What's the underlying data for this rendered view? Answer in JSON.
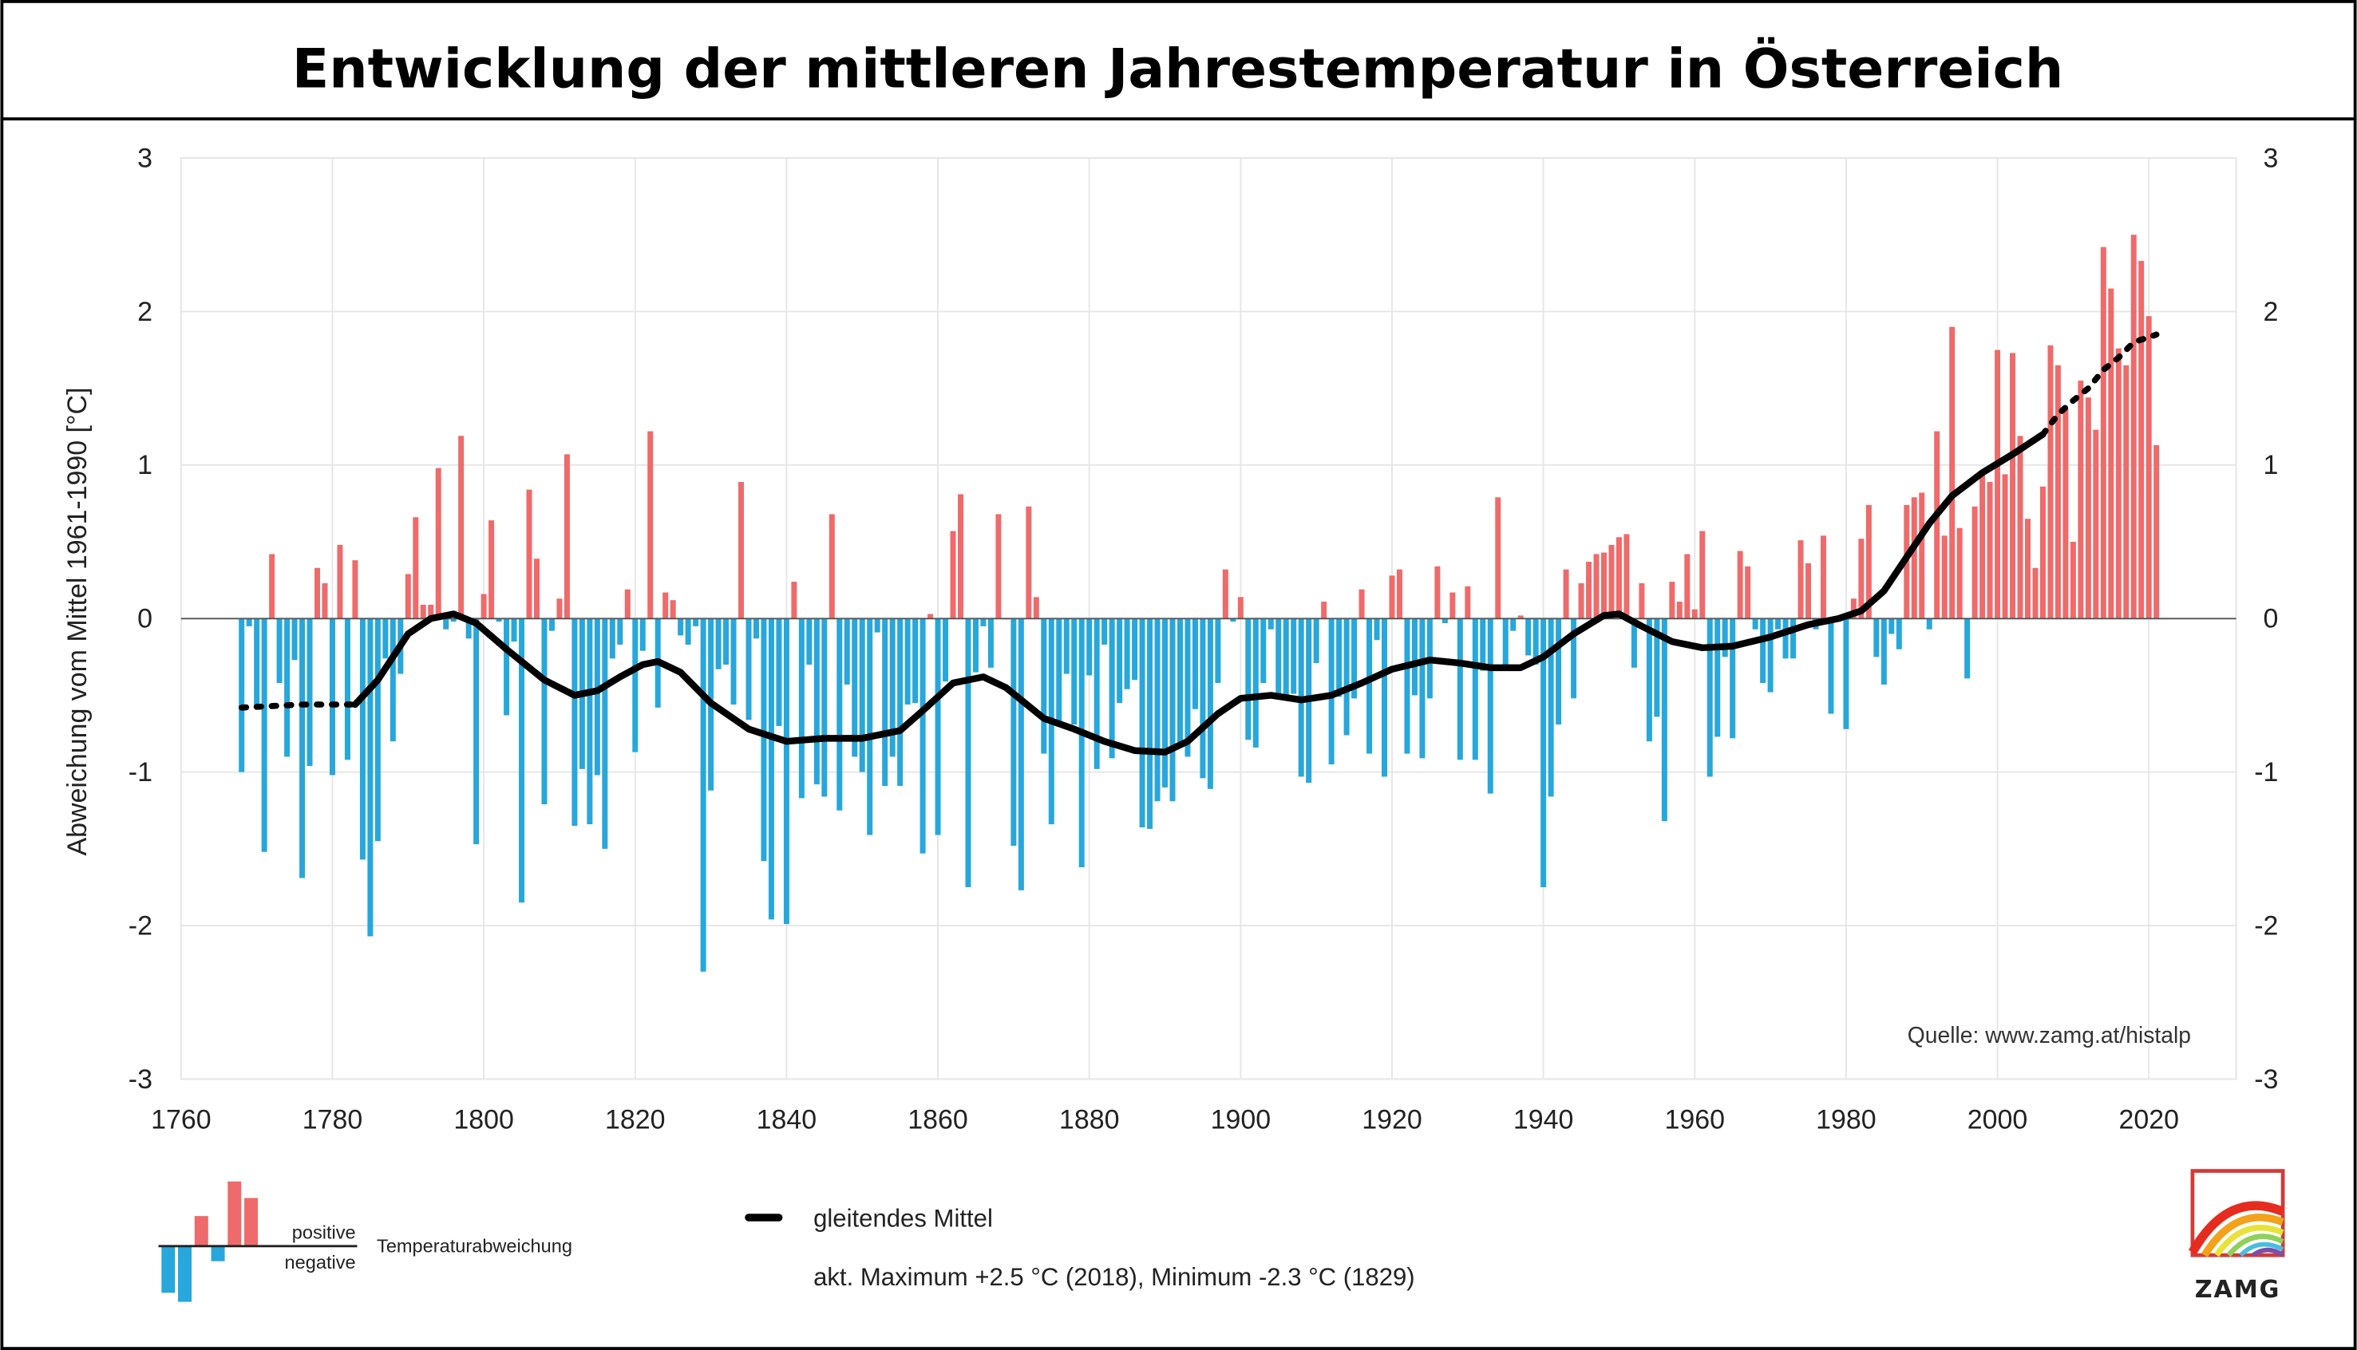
{
  "title": "Entwicklung der mittleren Jahrestemperatur in Österreich",
  "source": "Quelle: www.zamg.at/histalp",
  "legend": {
    "positive": "positive",
    "negative": "negative",
    "deviation": "Temperaturabweichung",
    "smoothed": "gleitendes Mittel",
    "extremes": "akt. Maximum +2.5 °C (2018), Minimum -2.3 °C (1829)"
  },
  "logo": {
    "text": "ZAMG"
  },
  "colors": {
    "positive": "#ef6a6a",
    "negative": "#27a7db",
    "smoothed": "#000000",
    "grid": "#e6e6e6"
  },
  "chart_data": {
    "type": "bar",
    "title": "Entwicklung der mittleren Jahrestemperatur in Österreich",
    "xlabel": "",
    "ylabel": "Abweichung vom Mittel 1961-1990 [°C]",
    "xlim": [
      1760,
      2025
    ],
    "ylim": [
      -3,
      3
    ],
    "xticks": [
      "1760",
      "1780",
      "1800",
      "1820",
      "1840",
      "1860",
      "1880",
      "1900",
      "1920",
      "1940",
      "1960",
      "1980",
      "2000",
      "2020"
    ],
    "yticks": [
      "3",
      "2",
      "1",
      "0",
      "-1",
      "-2",
      "-3"
    ],
    "grid": true,
    "legend_position": "bottom",
    "years": [
      1768,
      1769,
      1770,
      1771,
      1772,
      1773,
      1774,
      1775,
      1776,
      1777,
      1778,
      1779,
      1780,
      1781,
      1782,
      1783,
      1784,
      1785,
      1786,
      1787,
      1788,
      1789,
      1790,
      1791,
      1792,
      1793,
      1794,
      1795,
      1796,
      1797,
      1798,
      1799,
      1800,
      1801,
      1802,
      1803,
      1804,
      1805,
      1806,
      1807,
      1808,
      1809,
      1810,
      1811,
      1812,
      1813,
      1814,
      1815,
      1816,
      1817,
      1818,
      1819,
      1820,
      1821,
      1822,
      1823,
      1824,
      1825,
      1826,
      1827,
      1828,
      1829,
      1830,
      1831,
      1832,
      1833,
      1834,
      1835,
      1836,
      1837,
      1838,
      1839,
      1840,
      1841,
      1842,
      1843,
      1844,
      1845,
      1846,
      1847,
      1848,
      1849,
      1850,
      1851,
      1852,
      1853,
      1854,
      1855,
      1856,
      1857,
      1858,
      1859,
      1860,
      1861,
      1862,
      1863,
      1864,
      1865,
      1866,
      1867,
      1868,
      1869,
      1870,
      1871,
      1872,
      1873,
      1874,
      1875,
      1876,
      1877,
      1878,
      1879,
      1880,
      1881,
      1882,
      1883,
      1884,
      1885,
      1886,
      1887,
      1888,
      1889,
      1890,
      1891,
      1892,
      1893,
      1894,
      1895,
      1896,
      1897,
      1898,
      1899,
      1900,
      1901,
      1902,
      1903,
      1904,
      1905,
      1906,
      1907,
      1908,
      1909,
      1910,
      1911,
      1912,
      1913,
      1914,
      1915,
      1916,
      1917,
      1918,
      1919,
      1920,
      1921,
      1922,
      1923,
      1924,
      1925,
      1926,
      1927,
      1928,
      1929,
      1930,
      1931,
      1932,
      1933,
      1934,
      1935,
      1936,
      1937,
      1938,
      1939,
      1940,
      1941,
      1942,
      1943,
      1944,
      1945,
      1946,
      1947,
      1948,
      1949,
      1950,
      1951,
      1952,
      1953,
      1954,
      1955,
      1956,
      1957,
      1958,
      1959,
      1960,
      1961,
      1962,
      1963,
      1964,
      1965,
      1966,
      1967,
      1968,
      1969,
      1970,
      1971,
      1972,
      1973,
      1974,
      1975,
      1976,
      1977,
      1978,
      1979,
      1980,
      1981,
      1982,
      1983,
      1984,
      1985,
      1986,
      1987,
      1988,
      1989,
      1990,
      1991,
      1992,
      1993,
      1994,
      1995,
      1996,
      1997,
      1998,
      1999,
      2000,
      2001,
      2002,
      2003,
      2004,
      2005,
      2006,
      2007,
      2008,
      2009,
      2010,
      2011,
      2012,
      2013,
      2014,
      2015,
      2016,
      2017,
      2018,
      2019,
      2020,
      2021
    ],
    "values": [
      -1.0,
      -0.05,
      -0.58,
      -1.52,
      0.42,
      -0.42,
      -0.9,
      -0.27,
      -1.69,
      -0.96,
      0.33,
      0.23,
      -1.02,
      0.48,
      -0.92,
      0.38,
      -1.57,
      -2.07,
      -1.45,
      -0.26,
      -0.8,
      -0.36,
      0.29,
      0.66,
      0.09,
      0.09,
      0.98,
      -0.07,
      -0.02,
      1.19,
      -0.13,
      -1.47,
      0.16,
      0.64,
      -0.02,
      -0.63,
      -0.15,
      -1.85,
      0.84,
      0.39,
      -1.21,
      -0.08,
      0.13,
      1.07,
      -1.35,
      -0.98,
      -1.34,
      -1.02,
      -1.5,
      -0.26,
      -0.17,
      0.19,
      -0.87,
      -0.21,
      1.22,
      -0.58,
      0.17,
      0.12,
      -0.11,
      -0.17,
      -0.05,
      -2.3,
      -1.12,
      -0.33,
      -0.3,
      -0.56,
      0.89,
      -0.66,
      -0.13,
      -1.58,
      -1.96,
      -0.7,
      -1.99,
      0.24,
      -1.17,
      -0.3,
      -1.08,
      -1.16,
      0.68,
      -1.25,
      -0.43,
      -0.9,
      -1.0,
      -1.41,
      -0.09,
      -1.09,
      -0.9,
      -1.09,
      -0.56,
      -0.55,
      -1.53,
      0.03,
      -1.41,
      -0.41,
      0.57,
      0.81,
      -1.75,
      -0.35,
      -0.05,
      -0.32,
      0.68,
      0.0,
      -1.48,
      -1.77,
      0.73,
      0.14,
      -0.88,
      -1.34,
      -0.69,
      -0.36,
      -0.69,
      -1.62,
      -0.37,
      -0.98,
      -0.17,
      -0.91,
      -0.55,
      -0.46,
      -0.4,
      -1.36,
      -1.37,
      -1.19,
      -1.1,
      -1.19,
      -0.84,
      -0.9,
      -0.59,
      -1.04,
      -1.11,
      -0.42,
      0.32,
      -0.02,
      0.14,
      -0.79,
      -0.84,
      -0.42,
      -0.07,
      -0.49,
      -0.51,
      -0.49,
      -1.03,
      -1.07,
      -0.29,
      0.11,
      -0.95,
      -0.51,
      -0.76,
      -0.52,
      0.19,
      -0.88,
      -0.14,
      -1.03,
      0.28,
      0.32,
      -0.88,
      -0.5,
      -0.91,
      -0.52,
      0.34,
      -0.03,
      0.17,
      -0.92,
      0.21,
      -0.92,
      -0.34,
      -1.14,
      0.79,
      -0.3,
      -0.08,
      0.02,
      -0.24,
      -0.3,
      -1.75,
      -1.16,
      -0.69,
      0.32,
      -0.52,
      0.23,
      0.37,
      0.42,
      0.43,
      0.48,
      0.53,
      0.55,
      -0.32,
      0.23,
      -0.8,
      -0.64,
      -1.32,
      0.24,
      0.11,
      0.42,
      0.06,
      0.57,
      -1.03,
      -0.77,
      -0.25,
      -0.78,
      0.44,
      0.34,
      -0.07,
      -0.42,
      -0.48,
      -0.07,
      -0.26,
      -0.26,
      0.51,
      0.36,
      -0.07,
      0.54,
      -0.62,
      -0.02,
      -0.72,
      0.13,
      0.52,
      0.74,
      -0.25,
      -0.43,
      -0.1,
      -0.2,
      0.74,
      0.79,
      0.82,
      -0.07,
      1.22,
      0.54,
      1.9,
      0.59,
      -0.39,
      0.73,
      0.95,
      0.89,
      1.75,
      0.94,
      1.73,
      1.19,
      0.65,
      0.33,
      0.86,
      1.78,
      1.65,
      1.37,
      0.5,
      1.55,
      1.44,
      1.23,
      2.42,
      2.15,
      1.76,
      1.65,
      2.5,
      2.33,
      1.97,
      1.13
    ],
    "smoothed": {
      "name": "gleitendes Mittel",
      "x": [
        1768,
        1772,
        1776,
        1780,
        1783,
        1786,
        1790,
        1793,
        1796,
        1799,
        1803,
        1808,
        1812,
        1815,
        1818,
        1821,
        1823,
        1826,
        1830,
        1835,
        1840,
        1845,
        1850,
        1855,
        1858,
        1862,
        1866,
        1869,
        1874,
        1878,
        1882,
        1886,
        1890,
        1893,
        1897,
        1900,
        1904,
        1908,
        1912,
        1916,
        1920,
        1925,
        1929,
        1933,
        1937,
        1940,
        1944,
        1948,
        1950,
        1953,
        1957,
        1961,
        1965,
        1970,
        1975,
        1979,
        1982,
        1985,
        1988,
        1991,
        1994,
        1998,
        2002,
        2006,
        2008,
        2010,
        2012,
        2014,
        2016,
        2018,
        2021
      ],
      "y": [
        -0.58,
        -0.57,
        -0.56,
        -0.56,
        -0.56,
        -0.4,
        -0.1,
        0.0,
        0.03,
        -0.03,
        -0.2,
        -0.4,
        -0.5,
        -0.47,
        -0.38,
        -0.3,
        -0.28,
        -0.35,
        -0.55,
        -0.72,
        -0.8,
        -0.78,
        -0.78,
        -0.73,
        -0.6,
        -0.42,
        -0.38,
        -0.45,
        -0.65,
        -0.72,
        -0.8,
        -0.86,
        -0.87,
        -0.8,
        -0.62,
        -0.52,
        -0.5,
        -0.53,
        -0.5,
        -0.42,
        -0.33,
        -0.27,
        -0.29,
        -0.32,
        -0.32,
        -0.25,
        -0.1,
        0.02,
        0.03,
        -0.05,
        -0.15,
        -0.19,
        -0.18,
        -0.12,
        -0.04,
        0.0,
        0.05,
        0.18,
        0.4,
        0.62,
        0.8,
        0.95,
        1.07,
        1.2,
        1.33,
        1.42,
        1.5,
        1.62,
        1.7,
        1.8,
        1.85
      ]
    }
  }
}
